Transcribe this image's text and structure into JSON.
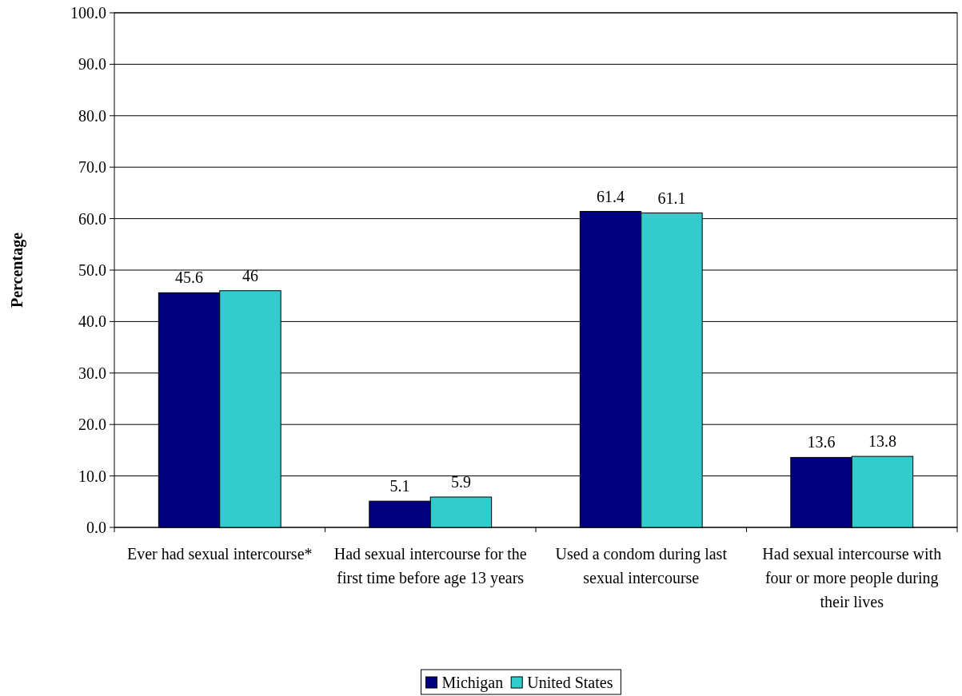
{
  "chart_data": {
    "type": "bar",
    "ylabel": "Percentage",
    "categories": [
      "Ever had sexual intercourse*",
      "Had sexual intercourse for the first time before age 13 years",
      "Used a condom during last sexual intercourse",
      "Had sexual intercourse with four or more people during their lives"
    ],
    "series": [
      {
        "name": "Michigan",
        "color": "#000080",
        "values": [
          45.6,
          5.1,
          61.4,
          13.6
        ]
      },
      {
        "name": "United States",
        "color": "#33cccc",
        "values": [
          46,
          5.9,
          61.1,
          13.8
        ]
      }
    ],
    "ylim": [
      0,
      100
    ],
    "yticks": [
      {
        "value": 0,
        "label": "0.0"
      },
      {
        "value": 10,
        "label": "10.0"
      },
      {
        "value": 20,
        "label": "20.0"
      },
      {
        "value": 30,
        "label": "30.0"
      },
      {
        "value": 40,
        "label": "40.0"
      },
      {
        "value": 50,
        "label": "50.0"
      },
      {
        "value": 60,
        "label": "60.0"
      },
      {
        "value": 70,
        "label": "70.0"
      },
      {
        "value": 80,
        "label": "80.0"
      },
      {
        "value": 90,
        "label": "90.0"
      },
      {
        "value": 100,
        "label": "100.0"
      }
    ],
    "grid": "y",
    "legend": "bottom",
    "data_labels": true
  }
}
